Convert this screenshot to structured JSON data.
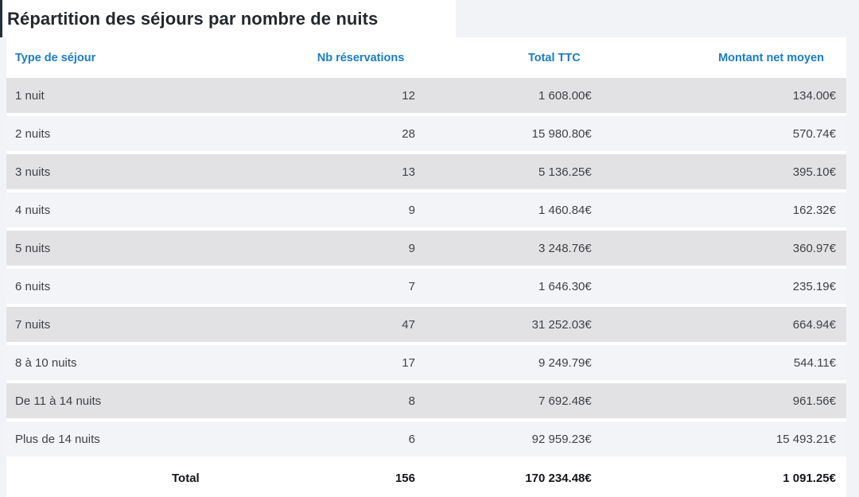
{
  "title": "Répartition des séjours par nombre de nuits",
  "table": {
    "columns": [
      {
        "label": "Type de séjour",
        "align": "left"
      },
      {
        "label": "Nb réservations",
        "align": "right"
      },
      {
        "label": "Total TTC",
        "align": "right"
      },
      {
        "label": "Montant net moyen",
        "align": "right"
      }
    ],
    "rows": [
      {
        "type": "1 nuit",
        "reservations": "12",
        "total_ttc": "1 608.00€",
        "net_moyen": "134.00€"
      },
      {
        "type": "2 nuits",
        "reservations": "28",
        "total_ttc": "15 980.80€",
        "net_moyen": "570.74€"
      },
      {
        "type": "3 nuits",
        "reservations": "13",
        "total_ttc": "5 136.25€",
        "net_moyen": "395.10€"
      },
      {
        "type": "4 nuits",
        "reservations": "9",
        "total_ttc": "1 460.84€",
        "net_moyen": "162.32€"
      },
      {
        "type": "5 nuits",
        "reservations": "9",
        "total_ttc": "3 248.76€",
        "net_moyen": "360.97€"
      },
      {
        "type": "6 nuits",
        "reservations": "7",
        "total_ttc": "1 646.30€",
        "net_moyen": "235.19€"
      },
      {
        "type": "7 nuits",
        "reservations": "47",
        "total_ttc": "31 252.03€",
        "net_moyen": "664.94€"
      },
      {
        "type": "8 à 10 nuits",
        "reservations": "17",
        "total_ttc": "9 249.79€",
        "net_moyen": "544.11€"
      },
      {
        "type": "De 11 à 14 nuits",
        "reservations": "8",
        "total_ttc": "7 692.48€",
        "net_moyen": "961.56€"
      },
      {
        "type": "Plus de 14 nuits",
        "reservations": "6",
        "total_ttc": "92 959.23€",
        "net_moyen": "15 493.21€"
      }
    ],
    "total_row": {
      "label": "Total",
      "reservations": "156",
      "total_ttc": "170 234.48€",
      "net_moyen": "1 091.25€"
    }
  },
  "colors": {
    "page_background": "#f1f3f7",
    "header_text_blue": "#1b7dc2",
    "row_odd_gray": "#e2e2e4",
    "row_even_light": "#f3f4f7",
    "title_text": "#24282d",
    "cell_text": "#3f4247",
    "total_text": "#131518",
    "window_edge_dark": "#232f3b"
  }
}
